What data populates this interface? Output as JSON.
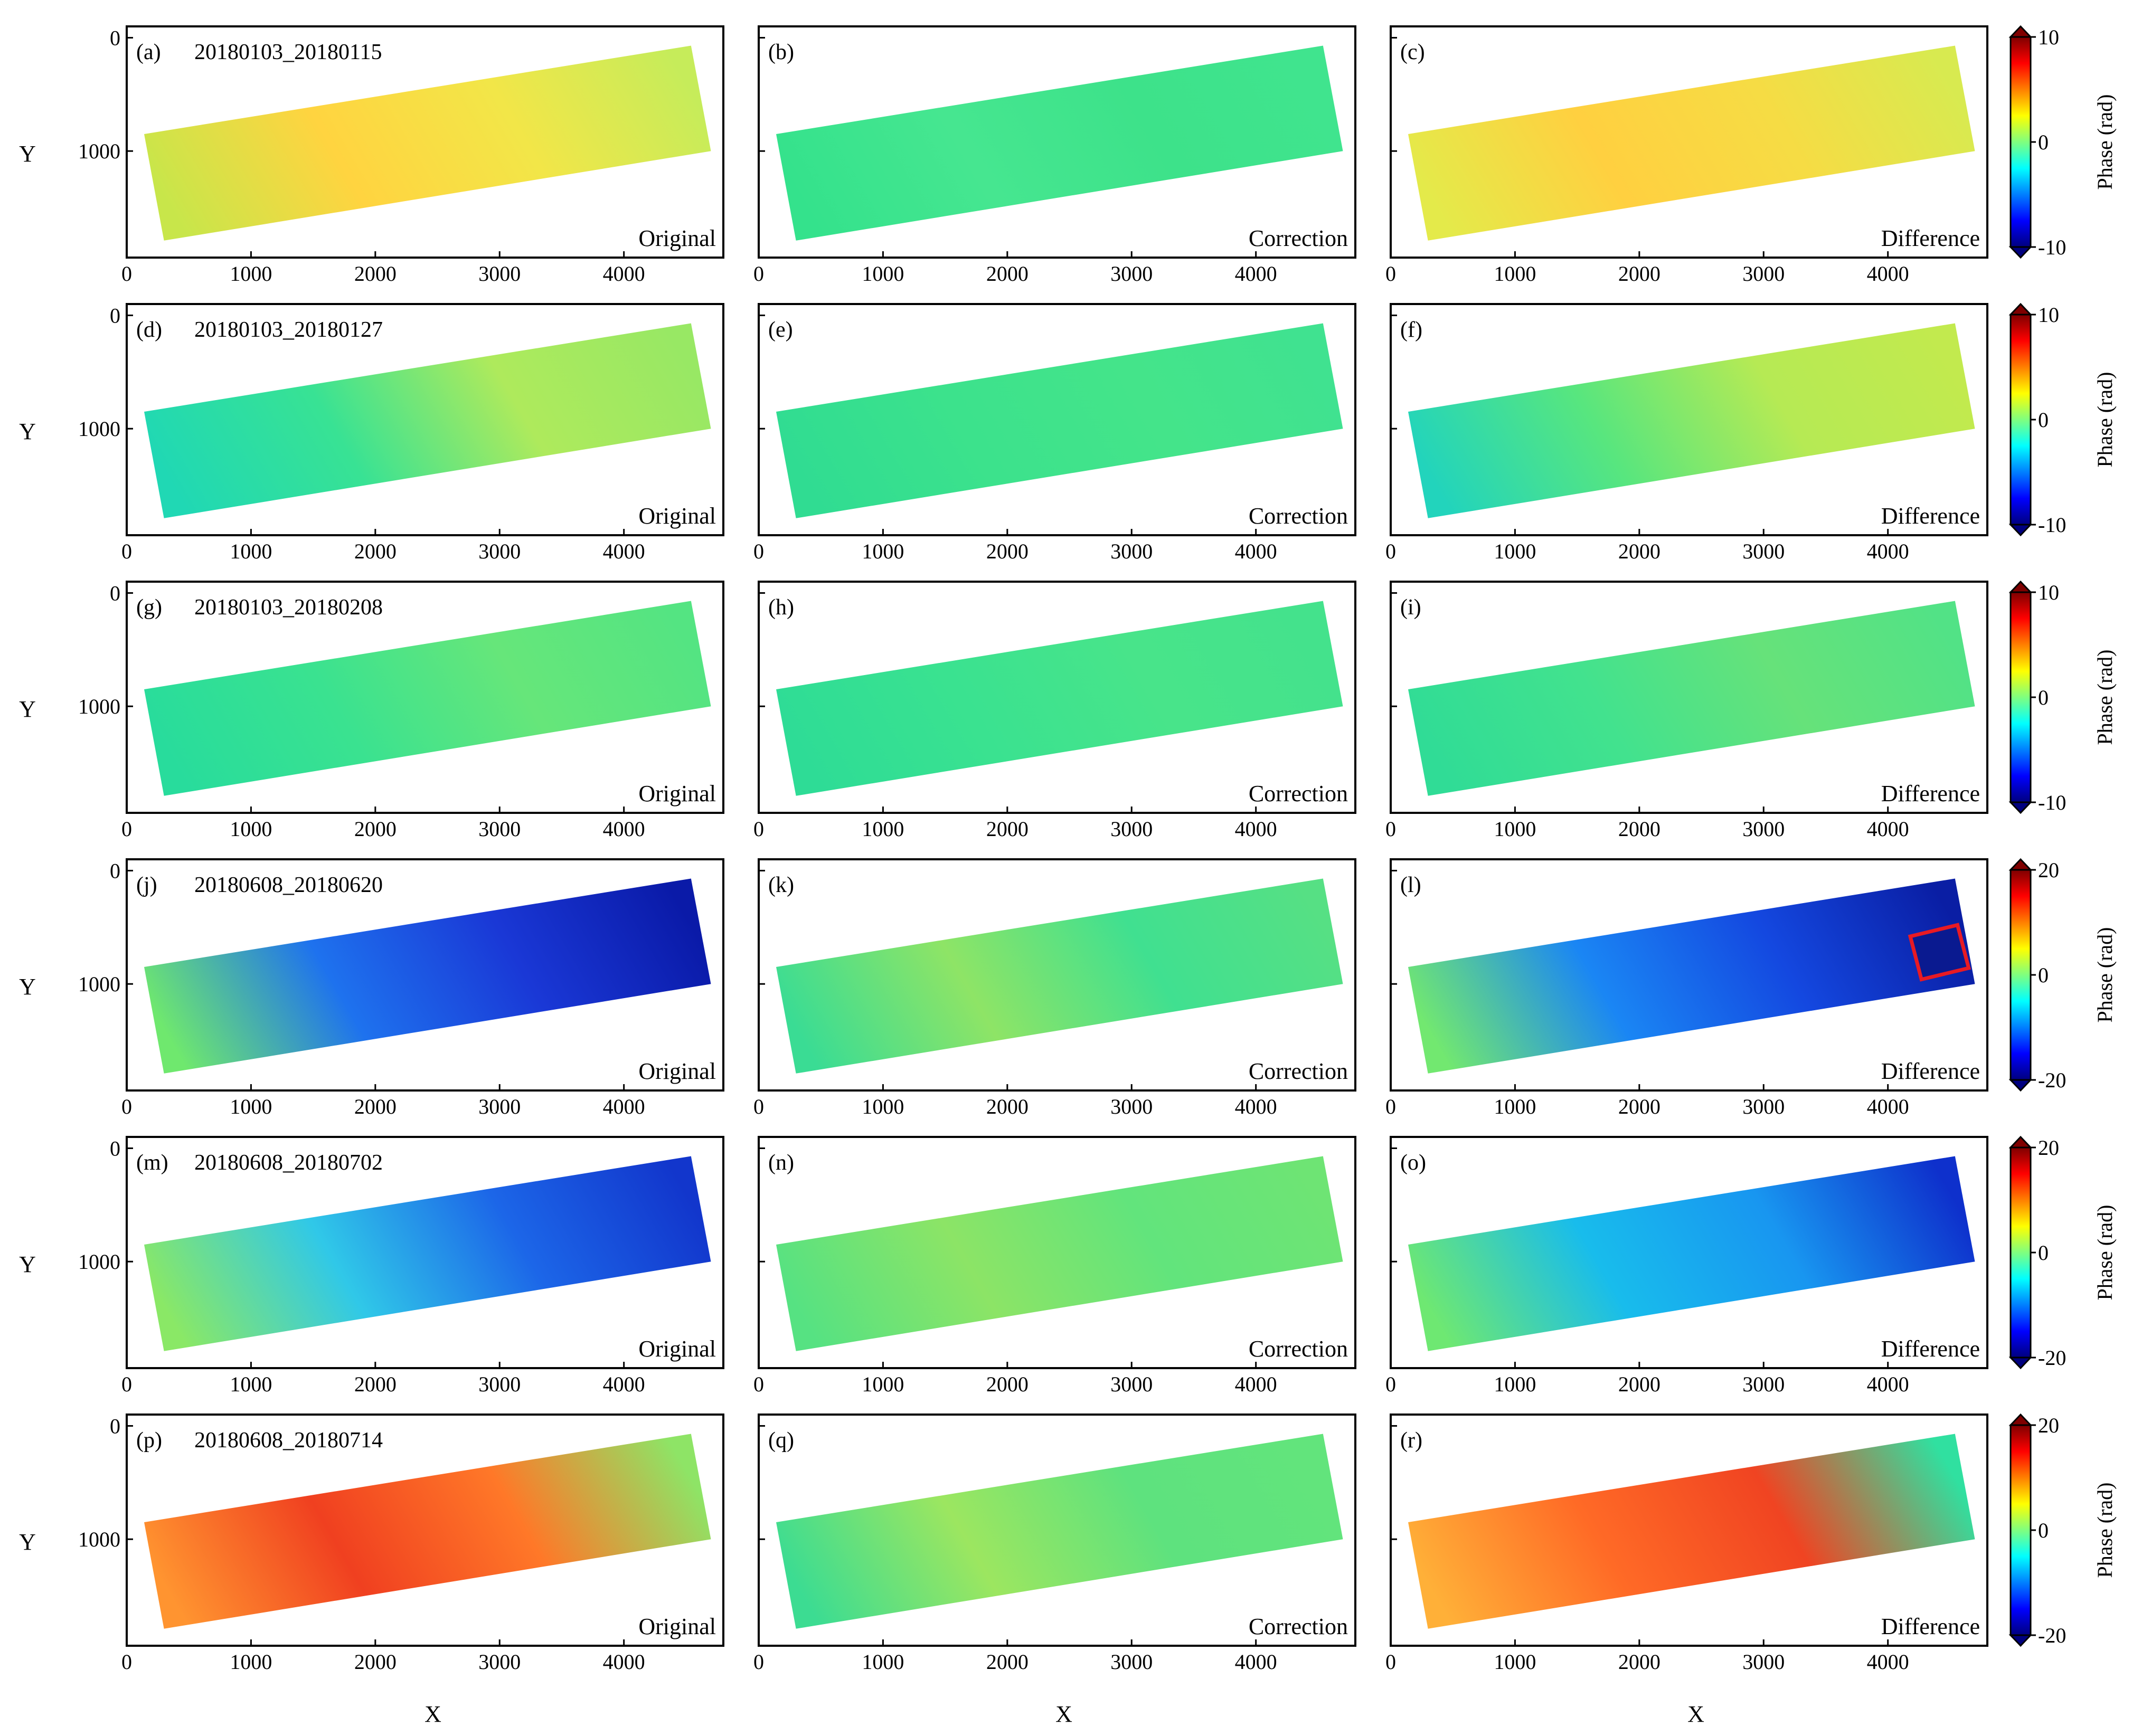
{
  "figure": {
    "axis_label_x": "X",
    "axis_label_y": "Y",
    "x_ticks": [
      "0",
      "1000",
      "2000",
      "3000",
      "4000"
    ],
    "y_ticks": [
      "0",
      "1000"
    ],
    "column_labels": [
      "Original",
      "Correction",
      "Difference"
    ],
    "colorbar_label": "Phase (rad)",
    "rows": [
      {
        "pair": "20180103_20180115",
        "panels": [
          "(a)",
          "(b)",
          "(c)"
        ],
        "cbar_ticks": [
          "10",
          "0",
          "-10"
        ],
        "fill": {
          "orig": [
            "#c8e64a",
            "#ffd440",
            "#f2e648",
            "#c6ec5a"
          ],
          "corr": [
            "#34e28c",
            "#46e690",
            "#3de28a",
            "#40e48e"
          ],
          "diff": [
            "#e4ea4a",
            "#ffd040",
            "#f6dc44",
            "#d8ea50"
          ]
        }
      },
      {
        "pair": "20180103_20180127",
        "panels": [
          "(d)",
          "(e)",
          "(f)"
        ],
        "cbar_ticks": [
          "10",
          "0",
          "-10"
        ],
        "fill": {
          "orig": [
            "#20d8b4",
            "#38e294",
            "#aeea5c",
            "#98e864"
          ],
          "corr": [
            "#30dc92",
            "#3ce28c",
            "#44e48a",
            "#40e290"
          ],
          "diff": [
            "#22d4bc",
            "#58e67e",
            "#b6ea54",
            "#c2ea4e"
          ]
        }
      },
      {
        "pair": "20180103_20180208",
        "panels": [
          "(g)",
          "(h)",
          "(i)"
        ],
        "cbar_ticks": [
          "10",
          "0",
          "-10"
        ],
        "fill": {
          "orig": [
            "#28dc9c",
            "#3ae290",
            "#66e67a",
            "#54e482"
          ],
          "corr": [
            "#2edc96",
            "#3ae290",
            "#48e48a",
            "#44e28c"
          ],
          "diff": [
            "#30dc96",
            "#42e28e",
            "#66e27a",
            "#52e286"
          ]
        }
      },
      {
        "pair": "20180608_20180620",
        "panels": [
          "(j)",
          "(k)",
          "(l)"
        ],
        "cbar_ticks": [
          "20",
          "0",
          "-20"
        ],
        "fill": {
          "orig": [
            "#6fe86e",
            "#1e72ee",
            "#1a38d6",
            "#0a1aa8"
          ],
          "corr": [
            "#3adc94",
            "#8ee466",
            "#40e090",
            "#56e084"
          ],
          "diff": [
            "#72e870",
            "#1a86f4",
            "#1448e0",
            "#0a1ea4"
          ]
        }
      },
      {
        "pair": "20180608_20180702",
        "panels": [
          "(m)",
          "(n)",
          "(o)"
        ],
        "cbar_ticks": [
          "20",
          "0",
          "-20"
        ],
        "fill": {
          "orig": [
            "#8ae866",
            "#30c8e8",
            "#1c66e8",
            "#1236cc"
          ],
          "corr": [
            "#56e282",
            "#8ce466",
            "#62e47c",
            "#6ee474"
          ],
          "diff": [
            "#6ee872",
            "#18bcec",
            "#1896f0",
            "#0e30cc"
          ]
        }
      },
      {
        "pair": "20180608_20180714",
        "panels": [
          "(p)",
          "(q)",
          "(r)"
        ],
        "cbar_ticks": [
          "20",
          "0",
          "-20"
        ],
        "fill": {
          "orig": [
            "#ff9430",
            "#f04020",
            "#ff7828",
            "#8ee466"
          ],
          "corr": [
            "#3cdc92",
            "#9ce660",
            "#5ee27e",
            "#62e47c"
          ],
          "diff": [
            "#ffb038",
            "#ff6a26",
            "#f04422",
            "#30e0a0"
          ]
        }
      }
    ],
    "highlight_box_color": "#e81a24",
    "highlight_box_panel": "(l)",
    "colormap": [
      "#00007f",
      "#0000ff",
      "#007fff",
      "#00ffff",
      "#7fff7f",
      "#ffff00",
      "#ff7f00",
      "#ff0000",
      "#7f0000"
    ]
  }
}
